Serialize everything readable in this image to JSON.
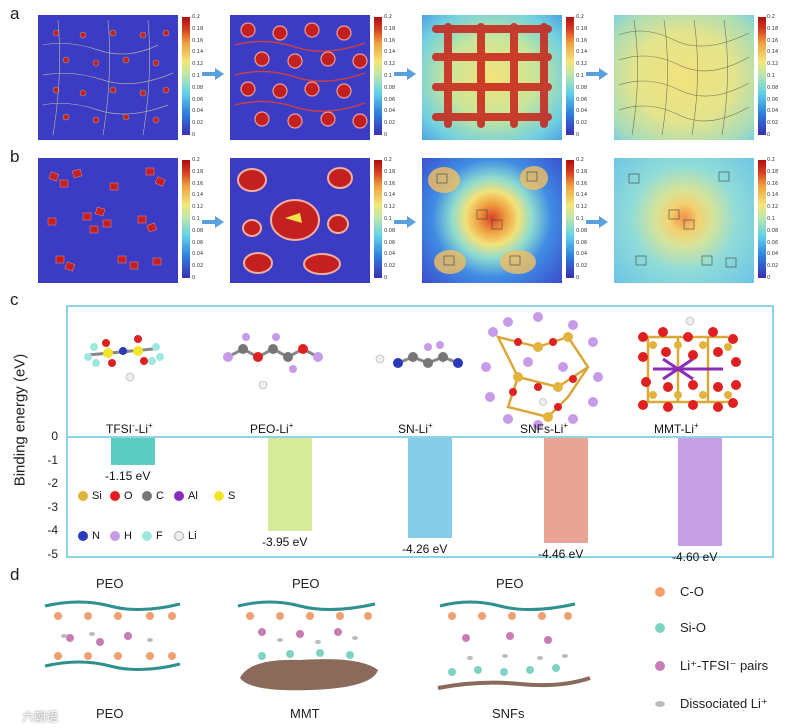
{
  "panels": {
    "a": "a",
    "b": "b",
    "c": "c",
    "d": "d"
  },
  "colorbar_ticks": [
    "0.2",
    "0.18",
    "0.16",
    "0.14",
    "0.12",
    "0.1",
    "0.08",
    "0.06",
    "0.04",
    "0.02",
    "0"
  ],
  "chart_data": {
    "type": "bar",
    "ylabel": "Binding energy (eV)",
    "yticks": [
      "0",
      "-1",
      "-2",
      "-3",
      "-4",
      "-5"
    ],
    "ylim": [
      -5.3,
      0
    ],
    "categories": [
      "TFSI⁻-Li⁺",
      "PEO-Li⁺",
      "SN-Li⁺",
      "SNFs-Li⁺",
      "MMT-Li⁺"
    ],
    "values": [
      -1.15,
      -3.95,
      -4.26,
      -4.46,
      -4.6
    ],
    "value_labels": [
      "-1.15 eV",
      "-3.95 eV",
      "-4.26 eV",
      "-4.46 eV",
      "-4.60 eV"
    ],
    "colors": [
      "#5ccdc0",
      "#d6ea9a",
      "#86cdea",
      "#e9a496",
      "#c6a0e4"
    ]
  },
  "category_labels": [
    {
      "main": "TFSI",
      "sup1": "-",
      "mid": "-Li",
      "sup2": "+"
    },
    {
      "main": "PEO-Li",
      "sup1": "",
      "mid": "",
      "sup2": "+"
    },
    {
      "main": "SN-Li",
      "sup1": "",
      "mid": "",
      "sup2": "+"
    },
    {
      "main": "SNFs-Li",
      "sup1": "",
      "mid": "",
      "sup2": "+"
    },
    {
      "main": "MMT-Li",
      "sup1": "",
      "mid": "",
      "sup2": "+"
    }
  ],
  "atom_legend": [
    {
      "label": "Si",
      "color": "#e3b43b"
    },
    {
      "label": "O",
      "color": "#e02020"
    },
    {
      "label": "C",
      "color": "#777777"
    },
    {
      "label": "Al",
      "color": "#8a2cb8"
    },
    {
      "label": "S",
      "color": "#f2e52a"
    },
    {
      "label": "N",
      "color": "#2a3ab8"
    },
    {
      "label": "H",
      "color": "#c79be8"
    },
    {
      "label": "F",
      "color": "#9ee8e2"
    },
    {
      "label": "Li",
      "color": "#eeeeee"
    }
  ],
  "panel_d": {
    "top_labels": [
      "PEO",
      "PEO",
      "PEO"
    ],
    "bottom_labels": [
      "PEO",
      "MMT",
      "SNFs"
    ],
    "legend": [
      "C-O",
      "Si-O",
      "Li⁺-TFSI⁻ pairs",
      "Dissociated Li⁺"
    ],
    "legend_colors": [
      "#f0a070",
      "#7ed4c4",
      "#c87cb4",
      "#bbbbbb"
    ]
  },
  "watermark": "六朝语"
}
